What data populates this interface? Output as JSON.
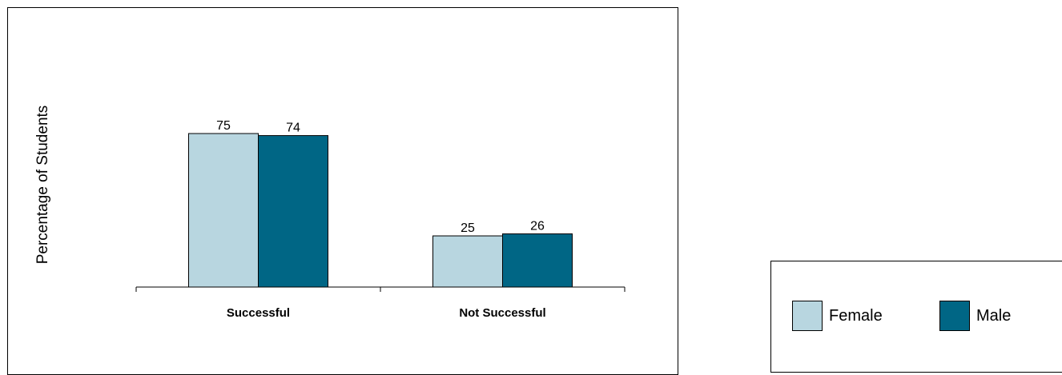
{
  "chart_data": {
    "type": "bar",
    "categories": [
      "Successful",
      "Not Successful"
    ],
    "series": [
      {
        "name": "Female",
        "values": [
          75,
          25
        ],
        "color": "#b8d6e0"
      },
      {
        "name": "Male",
        "values": [
          74,
          26
        ],
        "color": "#006685"
      }
    ],
    "xlabel": "",
    "ylabel": "Percentage of Students",
    "ylim": [
      0,
      100
    ],
    "grid": false,
    "legend_position": "bottom-right"
  }
}
